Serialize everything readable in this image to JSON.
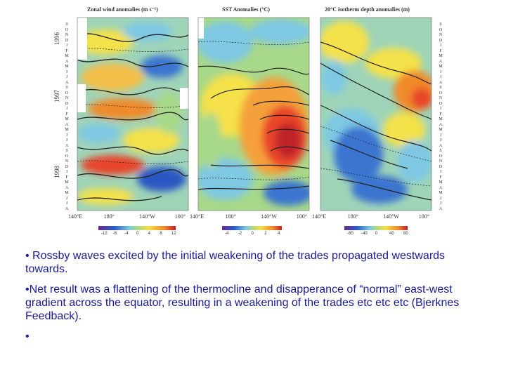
{
  "figure": {
    "panels": [
      {
        "title": "Zonal wind anomalies (m s⁻¹)",
        "x_ticks": [
          "140°E",
          "180°",
          "140°W",
          "100°"
        ],
        "colorbar_labels": [
          "-12",
          "-8",
          "-4",
          "0",
          "4",
          "8",
          "12"
        ]
      },
      {
        "title": "SST Anomalies (°C)",
        "x_ticks": [
          "140°E",
          "180°",
          "140°W",
          "100°"
        ],
        "colorbar_labels": [
          "-4",
          "-2",
          "0",
          "2",
          "4"
        ]
      },
      {
        "title": "20°C isotherm depth anomalies (m)",
        "x_ticks": [
          "140°E",
          "180°",
          "140°W",
          "100°"
        ],
        "colorbar_labels": [
          "-80",
          "-40",
          "0",
          "40",
          "80"
        ]
      }
    ],
    "years": [
      "1996",
      "1997",
      "1998"
    ],
    "months": [
      "S",
      "O",
      "N",
      "D",
      "J",
      "F",
      "M",
      "A",
      "M",
      "J",
      "J",
      "A",
      "S",
      "O",
      "N",
      "D",
      "J",
      "F",
      "M",
      "A",
      "M",
      "J",
      "J",
      "A",
      "S",
      "O",
      "N",
      "D",
      "J",
      "F",
      "M",
      "A",
      "M",
      "J",
      "J",
      "A"
    ],
    "colors": {
      "cold": "#2b59c3",
      "cool": "#7ec8e3",
      "mid": "#a8d88a",
      "warm": "#f5e14a",
      "hot": "#e8452c"
    }
  },
  "bullets": [
    "• Rossby waves excited by the initial weakening of the trades propagated westwards towards.",
    "•Net result was a flattening of the thermocline and disapperance of “normal” east-west gradient across the equator, resulting in a weakening of the trades etc etc etc (Bjerknes Feedback).",
    "•"
  ]
}
